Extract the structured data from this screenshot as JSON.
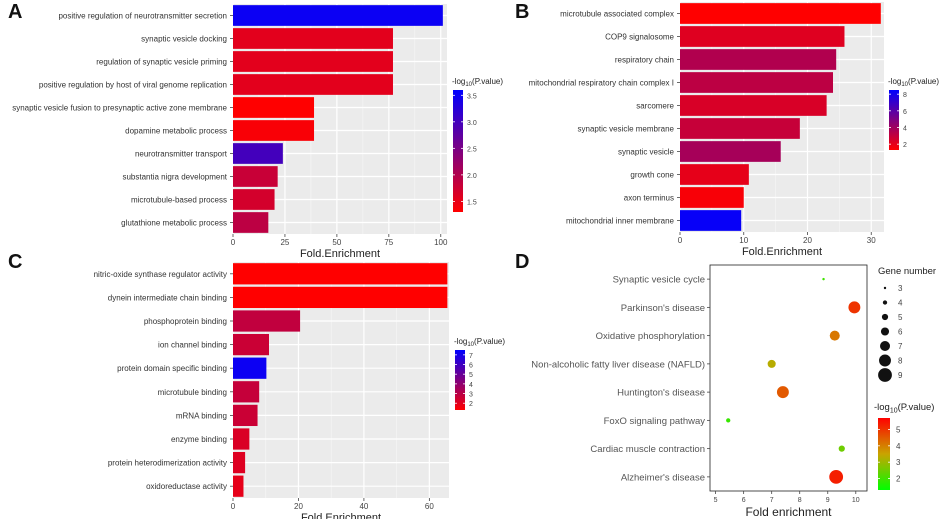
{
  "chart_data": [
    {
      "panel": "A",
      "type": "bar",
      "orientation": "horizontal",
      "xlabel": "Fold.Enrichment",
      "ylabel": "",
      "xlim": [
        0,
        103
      ],
      "xticks": [
        0,
        25,
        50,
        75,
        100
      ],
      "categories": [
        "positive regulation of neurotransmitter secretion",
        "synaptic vesicle docking",
        "regulation of synaptic vesicle priming",
        "positive regulation by host of viral genome replication",
        "synaptic vesicle fusion to presynaptic active zone membrane",
        "dopamine metabolic process",
        "neurotransmitter transport",
        "substantia nigra development",
        "microtubule-based process",
        "glutathione metabolic process"
      ],
      "values": [
        101,
        77,
        77,
        77,
        39,
        39,
        24,
        21.5,
        20,
        17
      ],
      "color_values": [
        3.5,
        1.55,
        1.55,
        1.55,
        1.3,
        1.35,
        3.0,
        1.8,
        1.7,
        1.9
      ],
      "legend": {
        "title_prefix": "-log",
        "title_sub": "10",
        "title_suffix": "(P.value)",
        "min": 1.3,
        "max": 3.6,
        "ticks": [
          3.5,
          3.0,
          2.5,
          2.0,
          1.5
        ],
        "tick_labels": [
          "3.5",
          "3.0",
          "2.5",
          "2.0",
          "1.5"
        ]
      }
    },
    {
      "panel": "B",
      "type": "bar",
      "orientation": "horizontal",
      "xlabel": "Fold.Enrichment",
      "ylabel": "",
      "xlim": [
        0,
        32
      ],
      "xticks": [
        0,
        10,
        20,
        30
      ],
      "categories": [
        "microtubule associated complex",
        "COP9 signalosome",
        "respiratory chain",
        "mitochondrial respiratory chain complex I",
        "sarcomere",
        "synaptic vesicle membrane",
        "synaptic vesicle",
        "growth cone",
        "axon terminus",
        "mitochondrial inner membrane"
      ],
      "values": [
        31.5,
        25.8,
        24.5,
        24,
        23,
        18.8,
        15.8,
        10.8,
        10,
        9.6
      ],
      "color_values": [
        1.3,
        2.2,
        3.5,
        3.2,
        2.4,
        2.9,
        3.8,
        2.0,
        1.5,
        8.3
      ],
      "legend": {
        "title_prefix": "-log",
        "title_sub": "10",
        "title_suffix": "(P.value)",
        "min": 1.3,
        "max": 8.5,
        "ticks": [
          8,
          6,
          4,
          2
        ],
        "tick_labels": [
          "8",
          "6",
          "4",
          "2"
        ]
      }
    },
    {
      "panel": "C",
      "type": "bar",
      "orientation": "horizontal",
      "xlabel": "Fold.Enrichment",
      "ylabel": "",
      "xlim": [
        0,
        66
      ],
      "xticks": [
        0,
        20,
        40,
        60
      ],
      "categories": [
        "nitric-oxide synthase regulator activity",
        "dynein intermediate chain binding",
        "phosphoprotein binding",
        "ion channel binding",
        "protein domain specific binding",
        "microtubule binding",
        "mRNA binding",
        "enzyme binding",
        "protein heterodimerization activity",
        "oxidoreductase activity"
      ],
      "values": [
        65.5,
        65.5,
        20.5,
        11,
        10.2,
        8,
        7.5,
        5,
        3.7,
        3.2
      ],
      "color_values": [
        1.3,
        1.3,
        2.8,
        2.6,
        7.2,
        2.7,
        2.6,
        2.2,
        2.1,
        1.9
      ],
      "legend": {
        "title_prefix": "-log",
        "title_sub": "10",
        "title_suffix": "(P.value)",
        "min": 1.3,
        "max": 7.5,
        "ticks": [
          7,
          6,
          5,
          4,
          3,
          2
        ],
        "tick_labels": [
          "7",
          "6",
          "5",
          "4",
          "3",
          "2"
        ]
      }
    },
    {
      "panel": "D",
      "type": "scatter",
      "xlabel": "Fold enrichment",
      "ylabel": "",
      "xlim": [
        4.8,
        10.4
      ],
      "xticks": [
        5,
        6,
        7,
        8,
        9,
        10
      ],
      "categories": [
        "Synaptic vesicle cycle",
        "Parkinson's disease",
        "Oxidative phosphorylation",
        "Non-alcoholic fatty liver disease (NAFLD)",
        "Huntington's disease",
        "FoxO signaling pathway",
        "Cardiac muscle contraction",
        "Alzheimer's disease"
      ],
      "x": [
        8.85,
        9.95,
        9.25,
        7.0,
        7.4,
        5.45,
        9.5,
        9.3
      ],
      "gene_number": [
        3,
        8,
        7,
        6,
        8,
        4,
        5,
        9
      ],
      "color_values": [
        2.0,
        5.0,
        4.1,
        3.3,
        4.5,
        1.9,
        2.5,
        5.3
      ],
      "size_legend": {
        "title": "Gene number",
        "values": [
          3,
          4,
          5,
          6,
          7,
          8,
          9
        ],
        "labels": [
          "3",
          "4",
          "5",
          "6",
          "7",
          "8",
          "9"
        ]
      },
      "color_legend": {
        "title_prefix": "-log",
        "title_sub": "10",
        "title_suffix": "(P.value)",
        "min": 1.3,
        "max": 5.7,
        "ticks": [
          5,
          4,
          3,
          2
        ],
        "tick_labels": [
          "5",
          "4",
          "3",
          "2"
        ]
      }
    }
  ],
  "panel_labels": [
    "A",
    "B",
    "C",
    "D"
  ]
}
